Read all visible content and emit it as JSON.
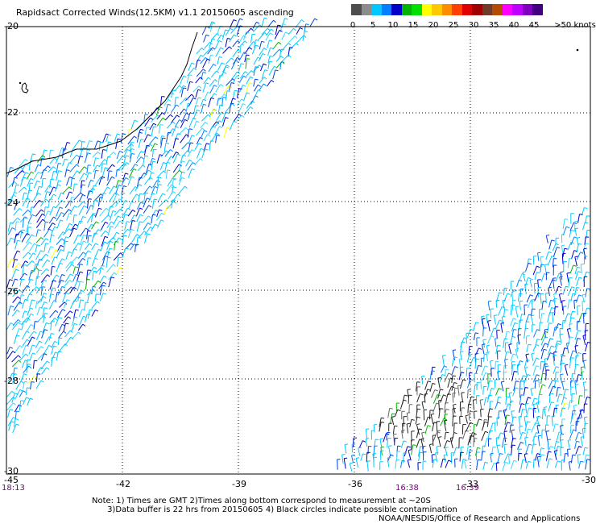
{
  "title": "Rapidsact Corrected Winds(12.5KM) v1.1 20150605 ascending",
  "colorbar": {
    "units_label": ">50 knots",
    "ticks": [
      "0",
      "5",
      "10",
      "15",
      "20",
      "25",
      "30",
      "35",
      "40",
      "45"
    ],
    "colors": [
      "#4d4d4d",
      "#8c8c8c",
      "#00c8ff",
      "#0080ff",
      "#0000c8",
      "#00b400",
      "#00e000",
      "#ffff00",
      "#ffc800",
      "#ff8c00",
      "#ff4000",
      "#e00000",
      "#a00000",
      "#6e3c28",
      "#b44b00",
      "#ff00ff",
      "#c000ff",
      "#8000c0",
      "#400080"
    ]
  },
  "axes": {
    "x_labels": [
      "-45",
      "-42",
      "-39",
      "-36",
      "-33",
      "-30"
    ],
    "y_labels": [
      "-20",
      "-22",
      "-24",
      "-26",
      "-28",
      "-30"
    ]
  },
  "times": [
    "18:13",
    "16:38",
    "16:39"
  ],
  "notes": {
    "line1": "Note: 1) Times are GMT 2)Times along bottom correspond to measurement at ~20S",
    "line2": "      3)Data buffer is 22 hrs from 20150605 4) Black circles indicate possible contamination"
  },
  "credit": "NOAA/NESDIS/Office of Research and Applications"
}
